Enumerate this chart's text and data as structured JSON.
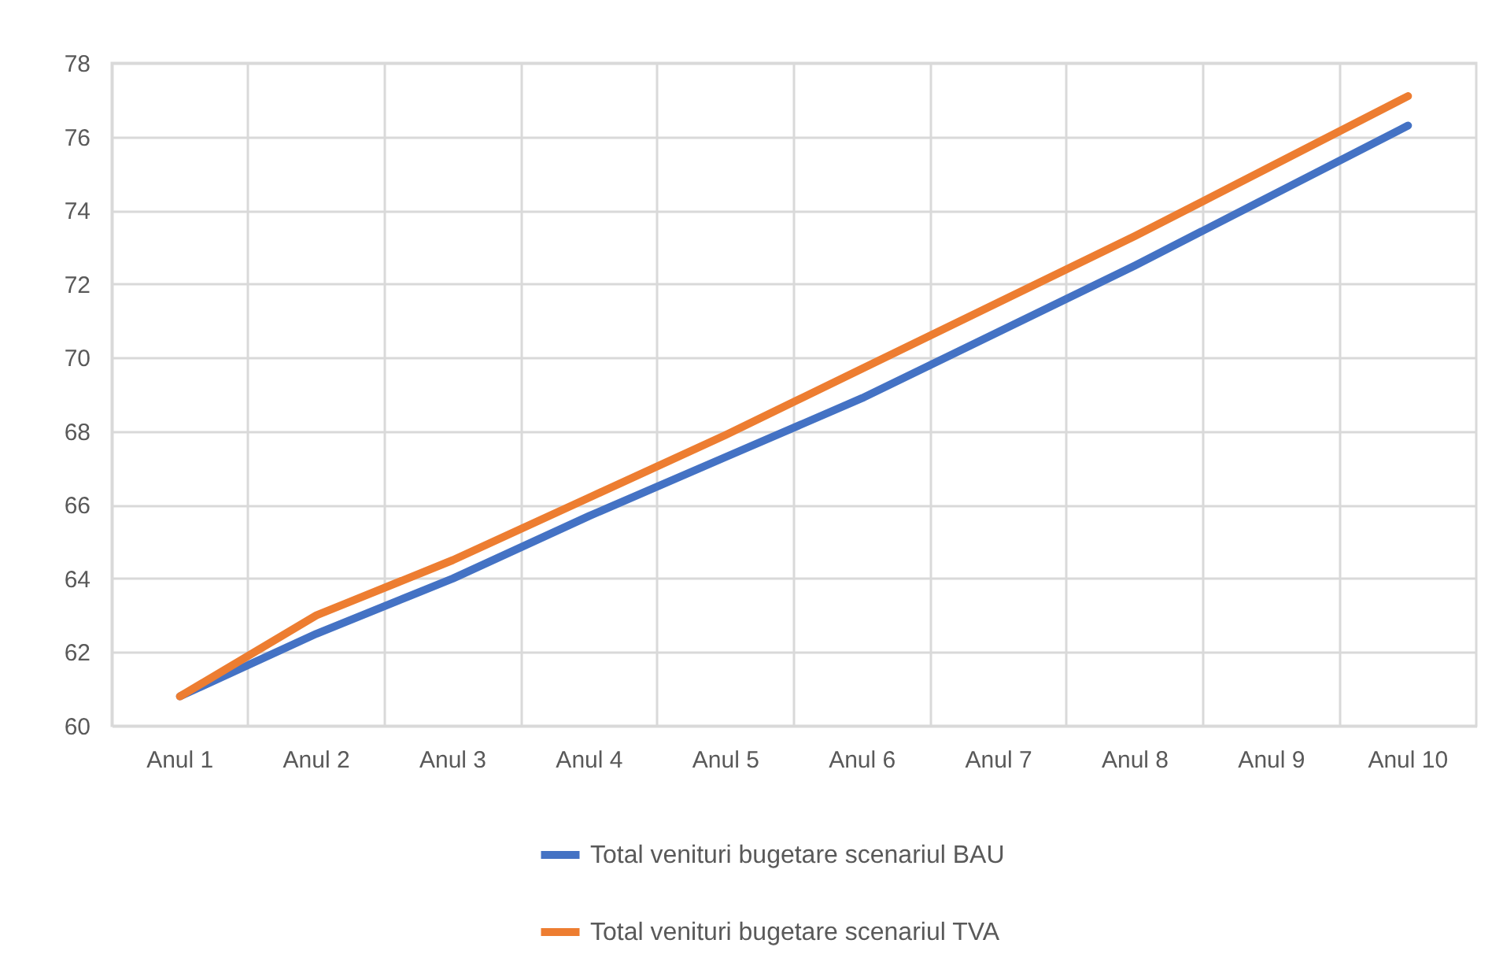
{
  "chart_data": {
    "type": "line",
    "categories": [
      "Anul 1",
      "Anul 2",
      "Anul 3",
      "Anul 4",
      "Anul 5",
      "Anul 6",
      "Anul 7",
      "Anul 8",
      "Anul 9",
      "Anul 10"
    ],
    "series": [
      {
        "name": "Total venituri bugetare scenariul  BAU",
        "color": "#4472c4",
        "values": [
          60.8,
          62.5,
          64.0,
          65.7,
          67.3,
          68.9,
          70.7,
          72.5,
          74.4,
          76.3
        ]
      },
      {
        "name": "Total venituri bugetare scenariul  TVA",
        "color": "#ed7d31",
        "values": [
          60.8,
          63.0,
          64.5,
          66.2,
          67.9,
          69.7,
          71.5,
          73.3,
          75.2,
          77.1
        ]
      }
    ],
    "ylim": [
      60,
      78
    ],
    "yticks": [
      60,
      62,
      64,
      66,
      68,
      70,
      72,
      74,
      76,
      78
    ],
    "grid": true,
    "legend": "bottom",
    "marker": "none",
    "line_style": "solid"
  }
}
